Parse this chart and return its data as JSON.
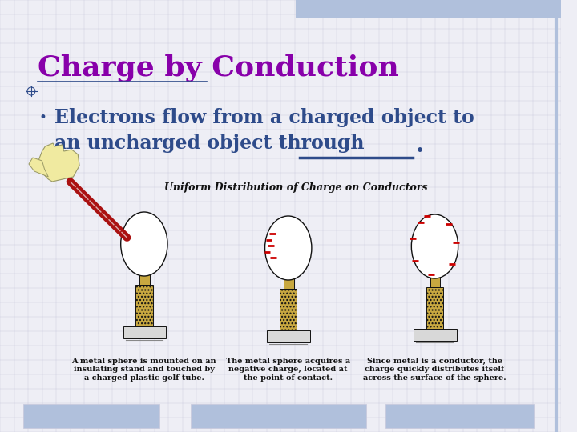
{
  "title": "Charge by Conduction",
  "title_color": "#8800AA",
  "title_fontsize": 26,
  "bullet_text_line1": "Electrons flow from a charged object to",
  "bullet_text_line2": "an uncharged object through",
  "bullet_color": "#2E4B8A",
  "bullet_fontsize": 17,
  "bullet_marker": "•",
  "diagram_title": "Uniform Distribution of Charge on Conductors",
  "diagram_title_fontsize": 9,
  "caption1": "A metal sphere is mounted on an\ninsulating stand and touched by\na charged plastic golf tube.",
  "caption2": "The metal sphere acquires a\nnegative charge, located at\nthe point of contact.",
  "caption3": "Since metal is a conductor, the\ncharge quickly distributes itself\nacross the surface of the sphere.",
  "caption_fontsize": 7,
  "bg_color": "#EEEEF5",
  "grid_color": "#C8C8DC",
  "header_bar_color": "#B0C0DC",
  "footer_bar_color": "#B0C0DC",
  "underline_color": "#2E4B8A",
  "sphere_color": "#FFFFFF",
  "sphere_edge_color": "#111111",
  "stand_color": "#C8A840",
  "base_color": "#D8D8D8",
  "charge_color": "#CC0000",
  "hand_color": "#F0EAA0",
  "tube_color": "#AA1111",
  "tube_light_color": "#DDAAAA"
}
